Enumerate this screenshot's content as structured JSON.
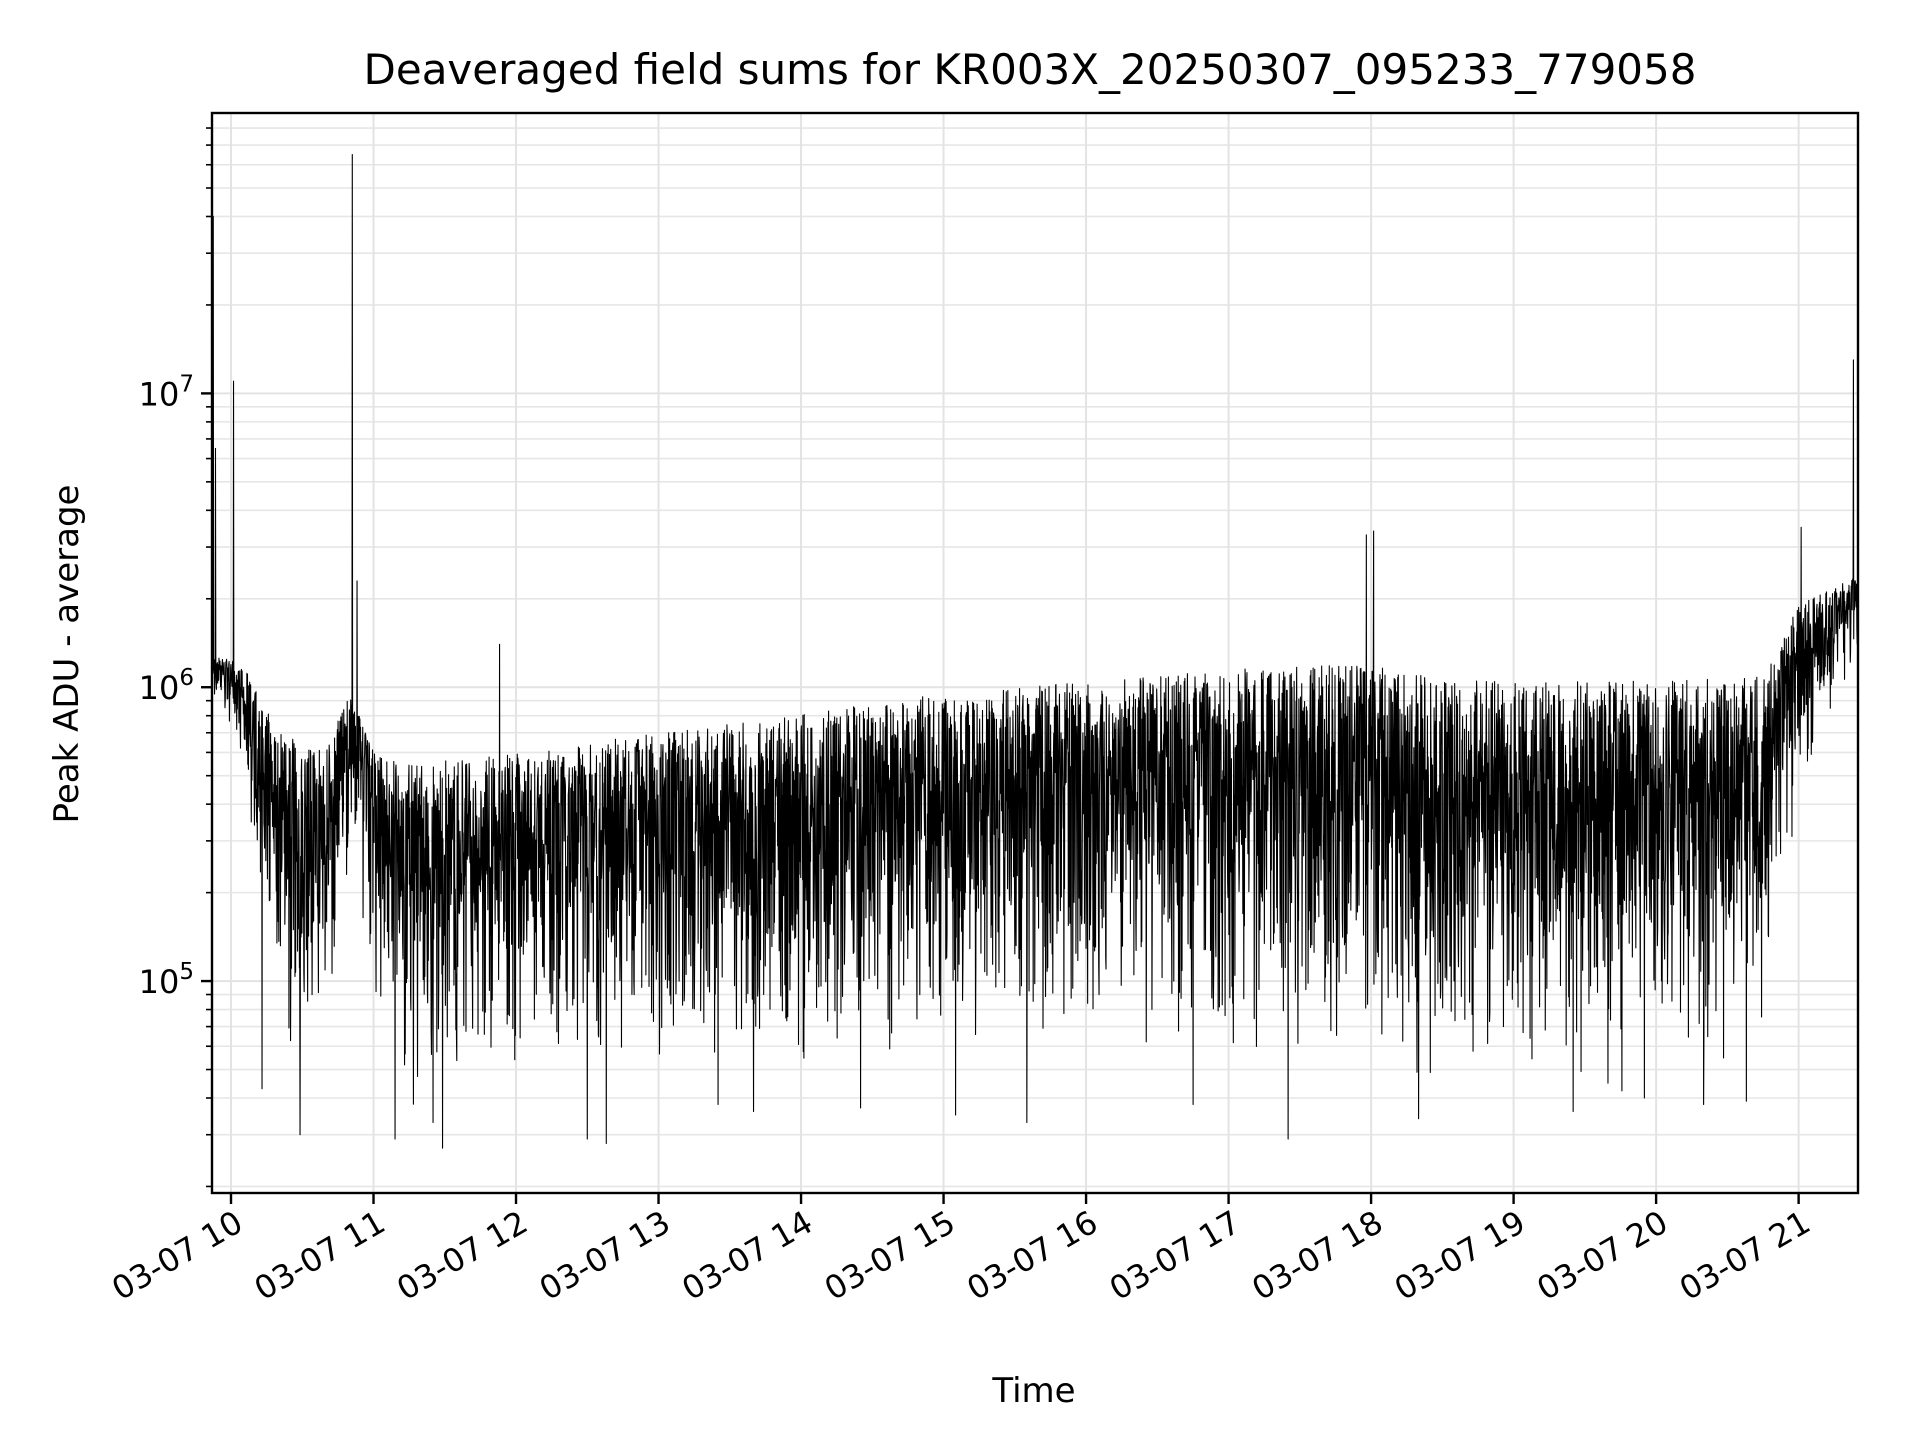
{
  "chart_data": {
    "type": "line",
    "title": "Deaveraged field sums for KR003X_20250307_095233_779058",
    "xlabel": "Time",
    "ylabel": "Peak ADU - average",
    "y_scale": "log",
    "xlim": [
      "2025-03-07T09:52:00",
      "2025-03-07T21:25:00"
    ],
    "ylim": [
      19000,
      90000000
    ],
    "grid": true,
    "x_ticks": [
      {
        "time": "2025-03-07T10:00:00",
        "label": "03-07 10"
      },
      {
        "time": "2025-03-07T11:00:00",
        "label": "03-07 11"
      },
      {
        "time": "2025-03-07T12:00:00",
        "label": "03-07 12"
      },
      {
        "time": "2025-03-07T13:00:00",
        "label": "03-07 13"
      },
      {
        "time": "2025-03-07T14:00:00",
        "label": "03-07 14"
      },
      {
        "time": "2025-03-07T15:00:00",
        "label": "03-07 15"
      },
      {
        "time": "2025-03-07T16:00:00",
        "label": "03-07 16"
      },
      {
        "time": "2025-03-07T17:00:00",
        "label": "03-07 17"
      },
      {
        "time": "2025-03-07T18:00:00",
        "label": "03-07 18"
      },
      {
        "time": "2025-03-07T19:00:00",
        "label": "03-07 19"
      },
      {
        "time": "2025-03-07T20:00:00",
        "label": "03-07 20"
      },
      {
        "time": "2025-03-07T21:00:00",
        "label": "03-07 21"
      }
    ],
    "y_ticks": [
      {
        "value": 100000,
        "base": "10",
        "exp": "5"
      },
      {
        "value": 1000000,
        "base": "10",
        "exp": "6"
      },
      {
        "value": 10000000,
        "base": "10",
        "exp": "7"
      }
    ],
    "series": [
      {
        "color": "#000000",
        "upper_envelope": [
          [
            "2025-03-07T09:52:00",
            1300000
          ],
          [
            "2025-03-07T10:05:00",
            1200000
          ],
          [
            "2025-03-07T10:20:00",
            700000
          ],
          [
            "2025-03-07T10:40:00",
            600000
          ],
          [
            "2025-03-07T10:50:00",
            1000000
          ],
          [
            "2025-03-07T11:00:00",
            600000
          ],
          [
            "2025-03-07T11:20:00",
            550000
          ],
          [
            "2025-03-07T11:40:00",
            580000
          ],
          [
            "2025-03-07T12:00:00",
            600000
          ],
          [
            "2025-03-07T13:00:00",
            700000
          ],
          [
            "2025-03-07T14:00:00",
            820000
          ],
          [
            "2025-03-07T15:00:00",
            950000
          ],
          [
            "2025-03-07T16:00:00",
            1050000
          ],
          [
            "2025-03-07T17:00:00",
            1150000
          ],
          [
            "2025-03-07T17:55:00",
            1200000
          ],
          [
            "2025-03-07T18:30:00",
            1100000
          ],
          [
            "2025-03-07T19:00:00",
            1050000
          ],
          [
            "2025-03-07T20:00:00",
            1050000
          ],
          [
            "2025-03-07T20:45:00",
            1100000
          ],
          [
            "2025-03-07T21:00:00",
            1900000
          ],
          [
            "2025-03-07T21:25:00",
            2400000
          ]
        ],
        "lower_envelope": [
          [
            "2025-03-07T09:52:00",
            900000
          ],
          [
            "2025-03-07T10:05:00",
            500000
          ],
          [
            "2025-03-07T10:20:00",
            60000
          ],
          [
            "2025-03-07T10:40:00",
            55000
          ],
          [
            "2025-03-07T10:50:00",
            250000
          ],
          [
            "2025-03-07T11:00:00",
            60000
          ],
          [
            "2025-03-07T11:20:00",
            32000
          ],
          [
            "2025-03-07T11:40:00",
            38000
          ],
          [
            "2025-03-07T12:00:00",
            50000
          ],
          [
            "2025-03-07T13:00:00",
            45000
          ],
          [
            "2025-03-07T14:00:00",
            40000
          ],
          [
            "2025-03-07T15:00:00",
            45000
          ],
          [
            "2025-03-07T16:00:00",
            50000
          ],
          [
            "2025-03-07T17:00:00",
            48000
          ],
          [
            "2025-03-07T17:55:00",
            55000
          ],
          [
            "2025-03-07T18:30:00",
            38000
          ],
          [
            "2025-03-07T19:00:00",
            42000
          ],
          [
            "2025-03-07T20:00:00",
            42000
          ],
          [
            "2025-03-07T20:45:00",
            50000
          ],
          [
            "2025-03-07T21:00:00",
            400000
          ],
          [
            "2025-03-07T21:25:00",
            1300000
          ]
        ],
        "spikes": [
          [
            "2025-03-07T09:52:30",
            40000000
          ],
          [
            "2025-03-07T09:53:30",
            6500000
          ],
          [
            "2025-03-07T10:01:00",
            11000000
          ],
          [
            "2025-03-07T10:51:00",
            65000000
          ],
          [
            "2025-03-07T10:53:00",
            2300000
          ],
          [
            "2025-03-07T11:53:00",
            1400000
          ],
          [
            "2025-03-07T17:58:00",
            3300000
          ],
          [
            "2025-03-07T18:01:00",
            3400000
          ],
          [
            "2025-03-07T21:01:00",
            3500000
          ],
          [
            "2025-03-07T21:23:00",
            13000000
          ]
        ],
        "dips": [
          [
            "2025-03-07T10:13:00",
            43000
          ],
          [
            "2025-03-07T10:29:00",
            30000
          ],
          [
            "2025-03-07T11:09:00",
            29000
          ],
          [
            "2025-03-07T11:25:00",
            33000
          ],
          [
            "2025-03-07T11:29:00",
            27000
          ],
          [
            "2025-03-07T12:30:00",
            29000
          ],
          [
            "2025-03-07T12:38:00",
            28000
          ],
          [
            "2025-03-07T13:25:00",
            38000
          ],
          [
            "2025-03-07T13:40:00",
            36000
          ],
          [
            "2025-03-07T14:25:00",
            37000
          ],
          [
            "2025-03-07T15:05:00",
            35000
          ],
          [
            "2025-03-07T15:35:00",
            33000
          ],
          [
            "2025-03-07T16:45:00",
            38000
          ],
          [
            "2025-03-07T17:25:00",
            29000
          ],
          [
            "2025-03-07T18:20:00",
            34000
          ],
          [
            "2025-03-07T19:25:00",
            36000
          ],
          [
            "2025-03-07T19:55:00",
            40000
          ],
          [
            "2025-03-07T20:20:00",
            38000
          ],
          [
            "2025-03-07T20:38:00",
            39000
          ]
        ],
        "sample_interval_seconds": 8
      }
    ]
  }
}
